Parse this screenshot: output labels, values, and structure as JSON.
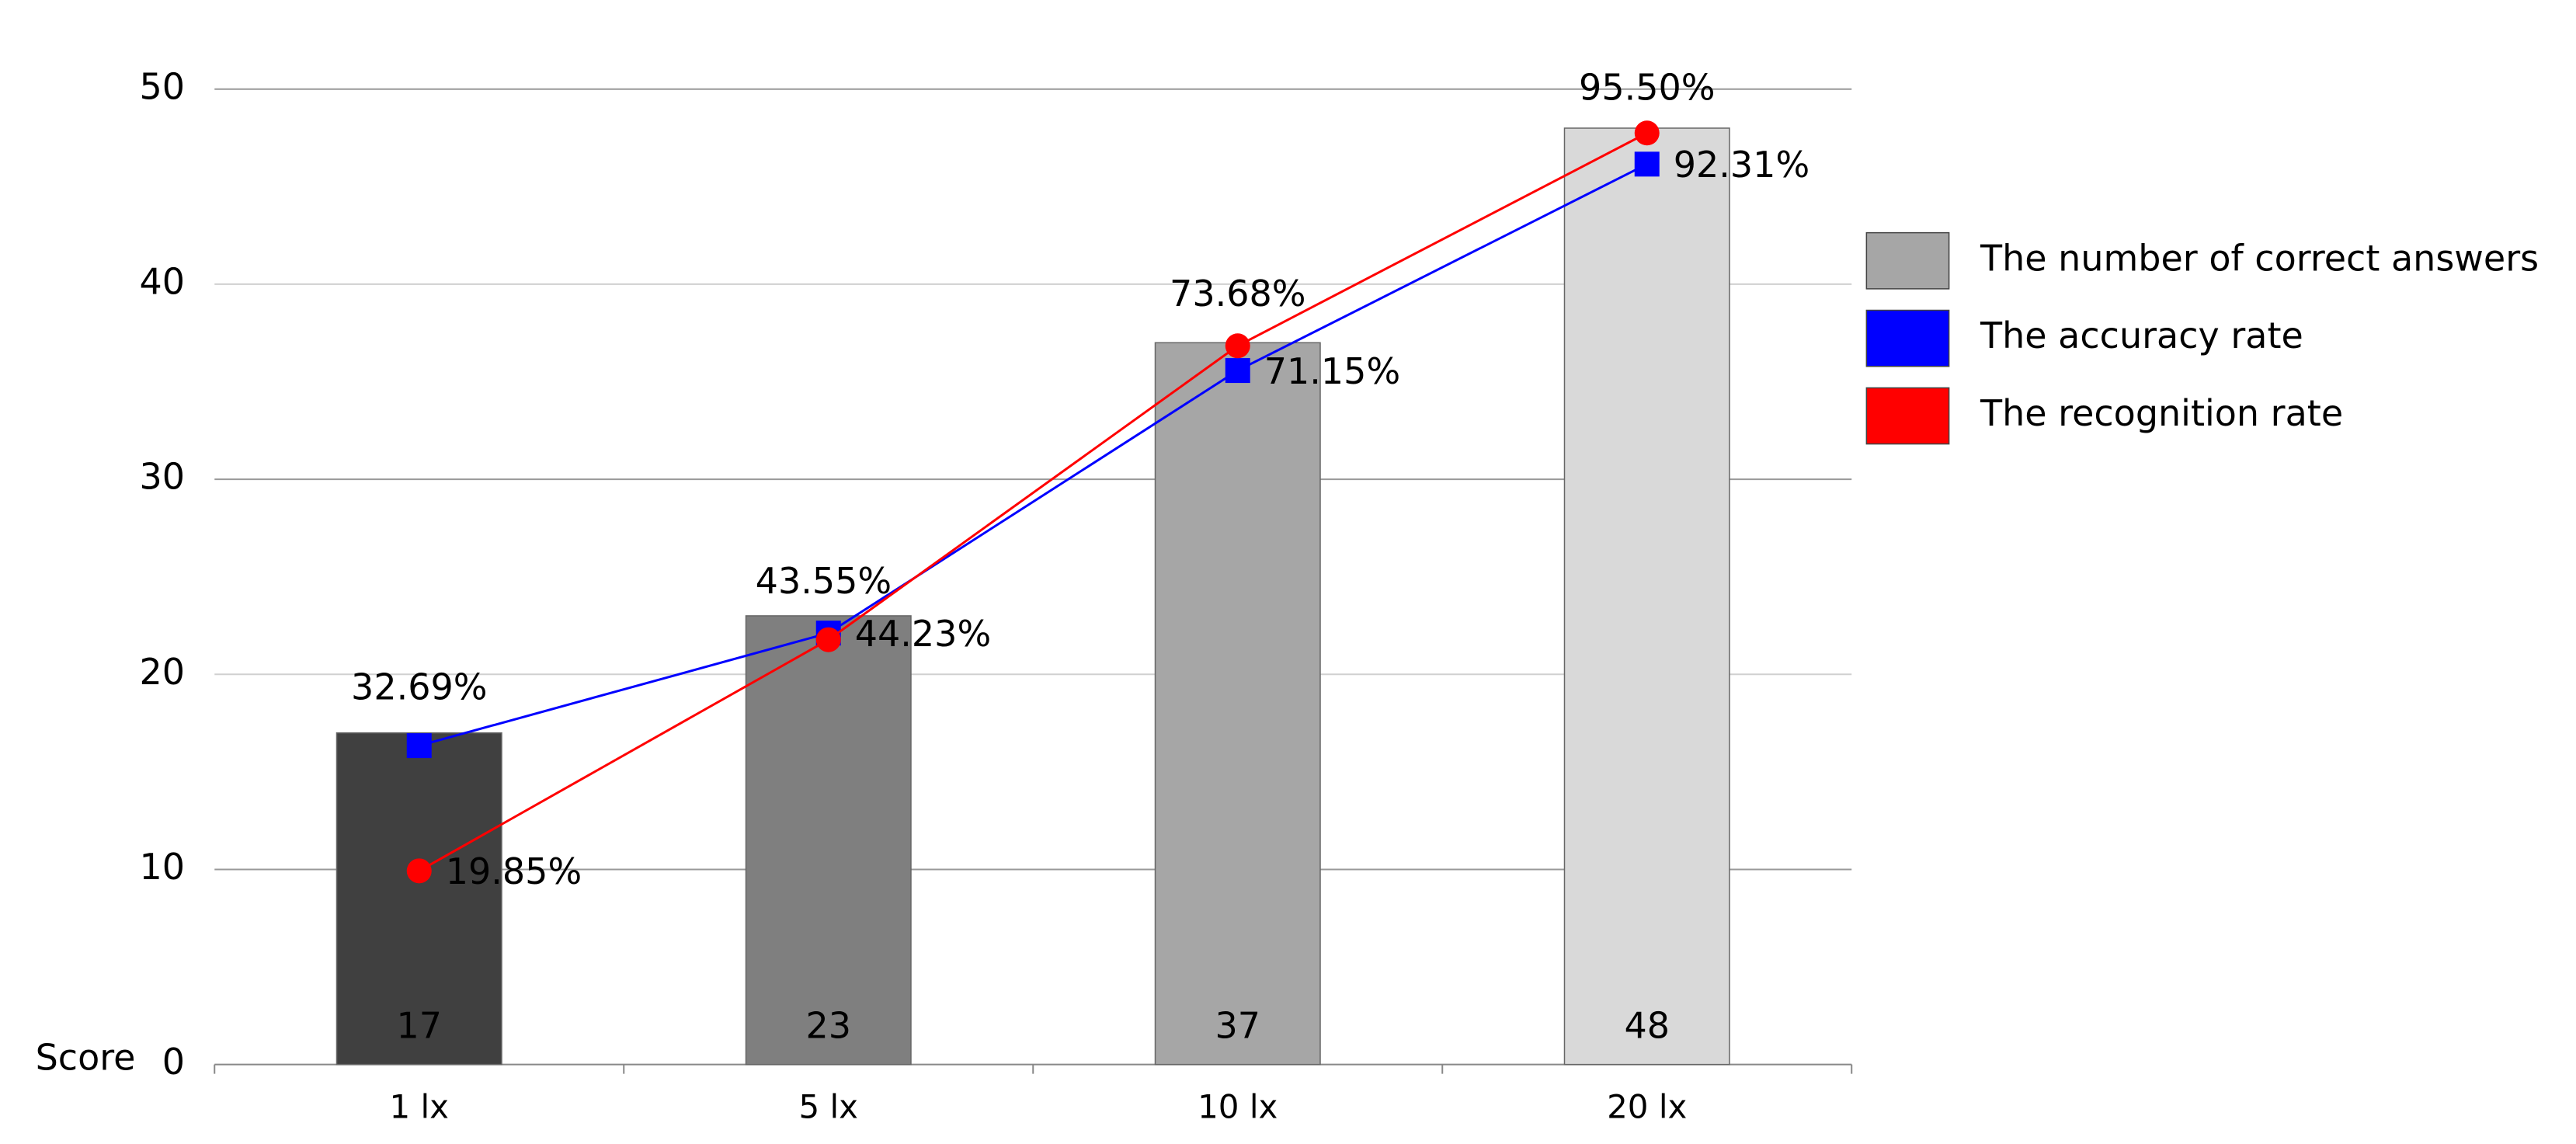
{
  "chart_data": {
    "type": "bar",
    "categories": [
      "1 lx",
      "5 lx",
      "10 lx",
      "20 lx"
    ],
    "y_label": "Score",
    "ylim": [
      0,
      50
    ],
    "yticks": [
      0,
      10,
      20,
      30,
      40,
      50
    ],
    "y2lim": [
      0,
      100
    ],
    "grid": true,
    "legend": "right",
    "series": [
      {
        "name": "The number of correct answers",
        "type": "bar",
        "color": "#a6a6a6",
        "colors": [
          "#404040",
          "#7f7f7f",
          "#a6a6a6",
          "#d9d9d9"
        ],
        "values": [
          17,
          23,
          37,
          48
        ]
      },
      {
        "name": "The accuracy rate",
        "type": "line",
        "axis": "y2",
        "color": "#0000ff",
        "marker": "square",
        "values": [
          32.69,
          44.23,
          71.15,
          92.31
        ],
        "value_labels": [
          "32.69%",
          "44.23%",
          "71.15%",
          "92.31%"
        ]
      },
      {
        "name": "The recognition rate",
        "type": "line",
        "axis": "y2",
        "color": "#ff0000",
        "marker": "circle",
        "values": [
          19.85,
          43.55,
          73.68,
          95.5
        ],
        "value_labels": [
          "19.85%",
          "43.55%",
          "73.68%",
          "95.50%"
        ]
      }
    ]
  }
}
